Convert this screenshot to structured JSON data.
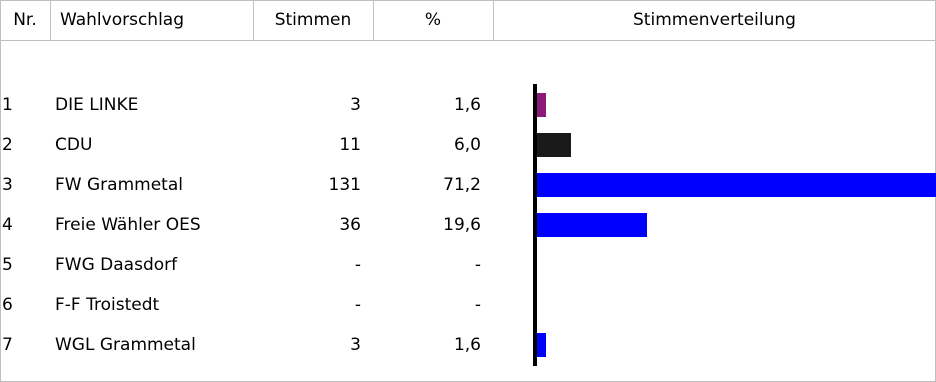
{
  "table": {
    "headers": {
      "nr": "Nr.",
      "wahlvorschlag": "Wahlvorschlag",
      "stimmen": "Stimmen",
      "pct": "%",
      "verteilung": "Stimmenverteilung"
    },
    "rows": [
      {
        "nr": "1",
        "name": "DIE LINKE",
        "stimmen": "3",
        "pct": "1,6"
      },
      {
        "nr": "2",
        "name": "CDU",
        "stimmen": "11",
        "pct": "6,0"
      },
      {
        "nr": "3",
        "name": "FW Grammetal",
        "stimmen": "131",
        "pct": "71,2"
      },
      {
        "nr": "4",
        "name": "Freie Wähler OES",
        "stimmen": "36",
        "pct": "19,6"
      },
      {
        "nr": "5",
        "name": "FWG Daasdorf",
        "stimmen": "-",
        "pct": "-"
      },
      {
        "nr": "6",
        "name": "F-F Troistedt",
        "stimmen": "-",
        "pct": "-"
      },
      {
        "nr": "7",
        "name": "WGL Grammetal",
        "stimmen": "3",
        "pct": "1,6"
      }
    ]
  },
  "chart_data": {
    "type": "bar",
    "title": "Stimmenverteilung",
    "categories": [
      "DIE LINKE",
      "CDU",
      "FW Grammetal",
      "Freie Wähler OES",
      "FWG Daasdorf",
      "F-F Troistedt",
      "WGL Grammetal"
    ],
    "values": [
      1.6,
      6.0,
      71.2,
      19.6,
      0,
      0,
      1.6
    ],
    "colors": [
      "#8b1a7a",
      "#1a1a1a",
      "#0000ff",
      "#0000ff",
      "#0000ff",
      "#0000ff",
      "#0000ff"
    ],
    "xlim": [
      0,
      71.2
    ],
    "grid": false
  }
}
